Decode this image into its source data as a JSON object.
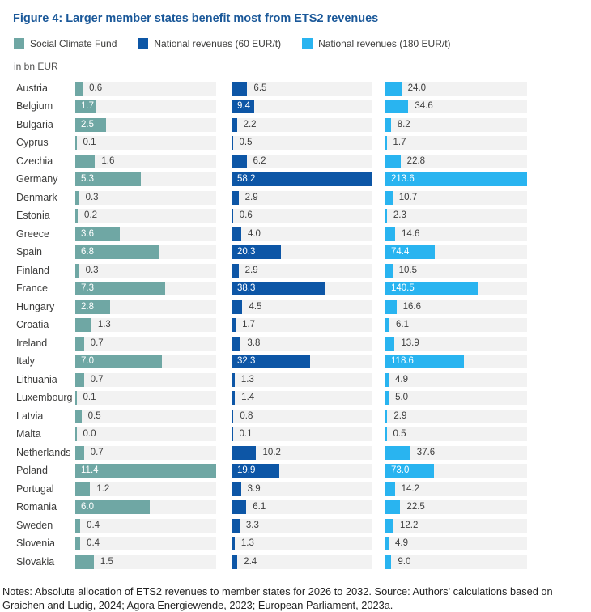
{
  "title": "Figure 4: Larger member states benefit most from ETS2 revenues",
  "unit": "in bn EUR",
  "notes": "Notes: Absolute allocation of ETS2 revenues to member states for 2026 to 2032. Source: Authors' calculations based on Graichen and Ludig, 2024; Agora Energiewende, 2023; European Parliament, 2023a.",
  "colors": {
    "title": "#1a5899",
    "track": "#f2f2f2",
    "country_label": "#3c3c3b",
    "value_inside": "#ffffff",
    "value_outside": "#3d3d3d"
  },
  "chart_data": {
    "type": "bar",
    "orientation": "horizontal",
    "title": "Figure 4: Larger member states benefit most from ETS2 revenues",
    "unit": "in bn EUR",
    "legend_position": "top",
    "grid": false,
    "categories": [
      "Austria",
      "Belgium",
      "Bulgaria",
      "Cyprus",
      "Czechia",
      "Germany",
      "Denmark",
      "Estonia",
      "Greece",
      "Spain",
      "Finland",
      "France",
      "Hungary",
      "Croatia",
      "Ireland",
      "Italy",
      "Lithuania",
      "Luxembourg",
      "Latvia",
      "Malta",
      "Netherlands",
      "Poland",
      "Portugal",
      "Romania",
      "Sweden",
      "Slovenia",
      "Slovakia"
    ],
    "series": [
      {
        "name": "Social Climate Fund",
        "color": "#6fa7a4",
        "axis_max": 11.4,
        "values": [
          0.6,
          1.7,
          2.5,
          0.1,
          1.6,
          5.3,
          0.3,
          0.2,
          3.6,
          6.8,
          0.3,
          7.3,
          2.8,
          1.3,
          0.7,
          7.0,
          0.7,
          0.1,
          0.5,
          0.0,
          0.7,
          11.4,
          1.2,
          6.0,
          0.4,
          0.4,
          1.5
        ]
      },
      {
        "name": "National revenues (60 EUR/t)",
        "color": "#0d56a6",
        "axis_max": 58.2,
        "values": [
          6.5,
          9.4,
          2.2,
          0.5,
          6.2,
          58.2,
          2.9,
          0.6,
          4.0,
          20.3,
          2.9,
          38.3,
          4.5,
          1.7,
          3.8,
          32.3,
          1.3,
          1.4,
          0.8,
          0.1,
          10.2,
          19.9,
          3.9,
          6.1,
          3.3,
          1.3,
          2.4
        ]
      },
      {
        "name": "National revenues (180 EUR/t)",
        "color": "#29b4f0",
        "axis_max": 213.6,
        "values": [
          24.0,
          34.6,
          8.2,
          1.7,
          22.8,
          213.6,
          10.7,
          2.3,
          14.6,
          74.4,
          10.5,
          140.5,
          16.6,
          6.1,
          13.9,
          118.6,
          4.9,
          5.0,
          2.9,
          0.5,
          37.6,
          73.0,
          14.2,
          22.5,
          12.2,
          4.9,
          9.0
        ]
      }
    ]
  }
}
